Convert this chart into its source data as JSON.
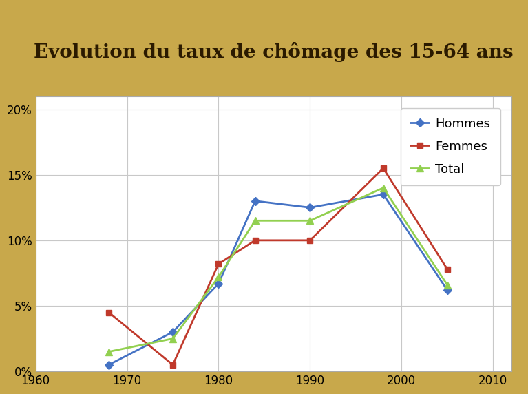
{
  "title": "Evolution du taux de chômage des 15-64 ans",
  "title_fontsize": 20,
  "bg_outer": "#c8a84b",
  "bg_parchment": "#f5eec8",
  "bg_chart": "#ffffff",
  "years": [
    1968,
    1975,
    1980,
    1984,
    1990,
    1998,
    2005
  ],
  "hommes": [
    0.005,
    0.03,
    0.067,
    0.13,
    0.125,
    0.135,
    0.062
  ],
  "femmes": [
    0.045,
    0.005,
    0.082,
    0.1,
    0.1,
    0.155,
    0.078
  ],
  "total": [
    0.015,
    0.025,
    0.072,
    0.115,
    0.115,
    0.14,
    0.066
  ],
  "hommes_color": "#4472c4",
  "femmes_color": "#c0392b",
  "total_color": "#92d050",
  "ylim": [
    0,
    0.21
  ],
  "xlim": [
    1960,
    2012
  ],
  "yticks": [
    0,
    0.05,
    0.1,
    0.15,
    0.2
  ],
  "xticks": [
    1960,
    1970,
    1980,
    1990,
    2000,
    2010
  ],
  "legend_labels": [
    "Hommes",
    "Femmes",
    "Total"
  ],
  "legend_markers": [
    "D",
    "s",
    "^"
  ]
}
